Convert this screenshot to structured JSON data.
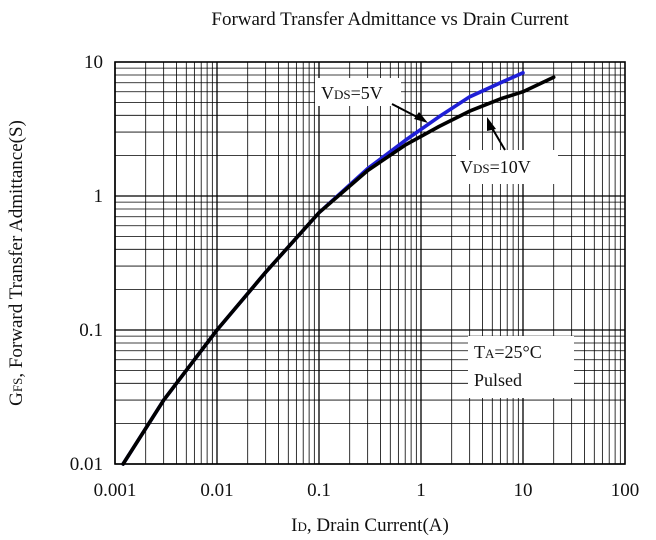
{
  "chart_data": {
    "type": "line",
    "title": "Forward Transfer Admittance vs Drain Current",
    "xlabel": {
      "prefix": "I",
      "sub": "D",
      "rest": ", Drain Current(A)"
    },
    "ylabel": {
      "prefix": "G",
      "sub": "FS",
      "rest": ", Forward Transfer Admittance(S)"
    },
    "x_scale": "log",
    "y_scale": "log",
    "xlim": [
      0.001,
      100
    ],
    "ylim": [
      0.01,
      10
    ],
    "x_ticks": [
      "0.001",
      "0.01",
      "0.1",
      "1",
      "10",
      "100"
    ],
    "y_ticks": [
      "0.01",
      "0.1",
      "1",
      "10"
    ],
    "grid": true,
    "series": [
      {
        "name": "VDS=5V",
        "color": "#1f1fd6",
        "x": [
          0.0012,
          0.003,
          0.01,
          0.03,
          0.1,
          0.3,
          0.7,
          1.5,
          3,
          6,
          10
        ],
        "y": [
          0.01,
          0.03,
          0.1,
          0.27,
          0.75,
          1.6,
          2.6,
          3.9,
          5.5,
          7.0,
          8.3
        ]
      },
      {
        "name": "VDS=10V",
        "color": "#000000",
        "x": [
          0.0012,
          0.003,
          0.01,
          0.03,
          0.1,
          0.3,
          0.7,
          1.5,
          3,
          6,
          10,
          20
        ],
        "y": [
          0.01,
          0.03,
          0.1,
          0.27,
          0.75,
          1.55,
          2.4,
          3.3,
          4.3,
          5.3,
          6.0,
          7.7
        ]
      }
    ],
    "annotations": [
      {
        "prefix": "V",
        "sub": "DS",
        "rest": "=5V",
        "points_to": [
          1.0,
          3.3
        ]
      },
      {
        "prefix": "V",
        "sub": "DS",
        "rest": "=10V",
        "points_to": [
          4.0,
          4.7
        ]
      }
    ],
    "conditions": {
      "line1": {
        "prefix": "T",
        "sub": "A",
        "rest": "=25°C"
      },
      "line2": "Pulsed"
    }
  }
}
